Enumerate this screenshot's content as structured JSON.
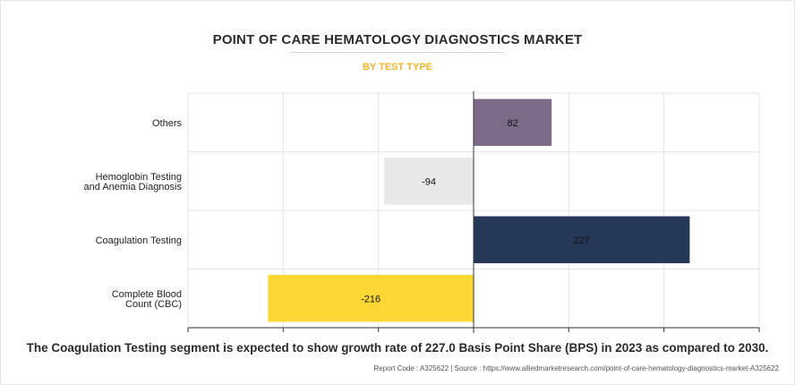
{
  "header": {
    "title": "POINT OF CARE HEMATOLOGY DIAGNOSTICS MARKET",
    "subtitle": "BY TEST TYPE"
  },
  "footer": {
    "note": "The Coagulation Testing segment is expected to show growth rate of 227.0 Basis Point Share (BPS) in 2023 as compared to 2030.",
    "source": "Report Code : A325622  |  Source : https://www.alliedmarketresearch.com/point-of-care-hematology-diagnostics-market-A325622"
  },
  "chart_data": {
    "type": "bar",
    "orientation": "horizontal",
    "categories": [
      [
        "Others"
      ],
      [
        "Hemoglobin Testing",
        "and Anemia Diagnosis"
      ],
      [
        "Coagulation Testing"
      ],
      [
        "Complete Blood",
        "Count (CBC)"
      ]
    ],
    "values": [
      82,
      -94,
      227,
      -216
    ],
    "colors": [
      "#7b6b88",
      "#e8e8e8",
      "#253858",
      "#fdd835"
    ],
    "xlim": [
      -300,
      300
    ],
    "grid": true
  }
}
